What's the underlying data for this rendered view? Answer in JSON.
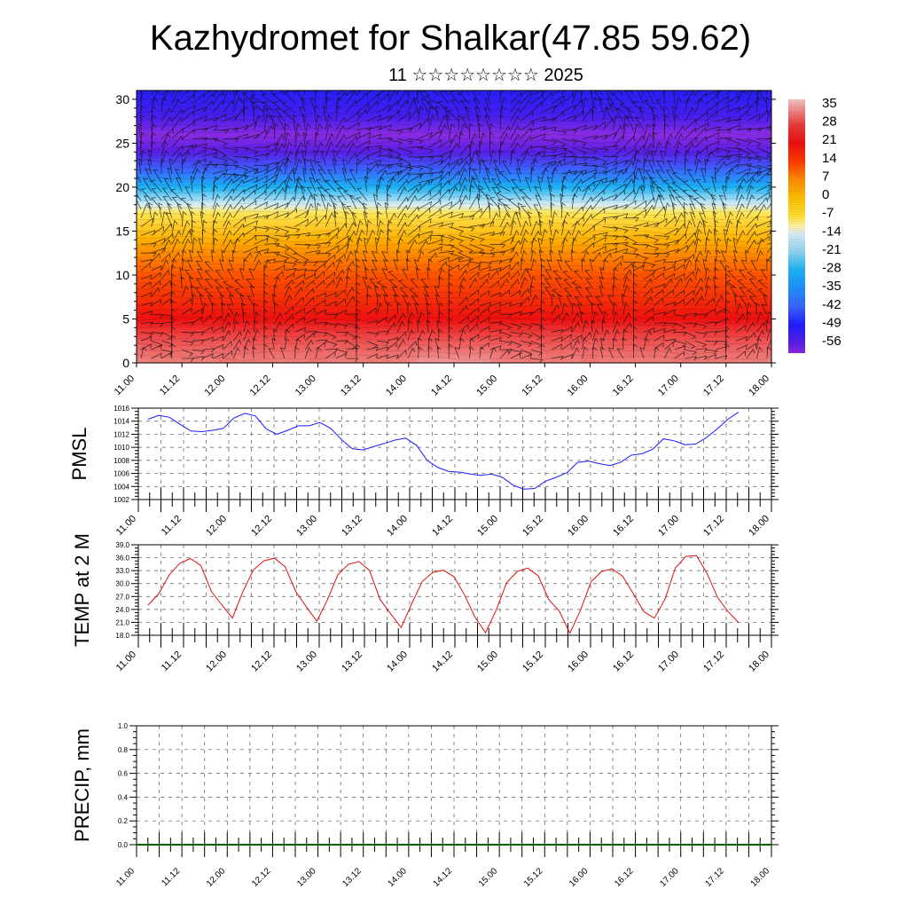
{
  "header": {
    "title": "Kazhydromet for Shalkar(47.85 59.62)",
    "subtitle": "11 ☆☆☆☆☆☆☆☆ 2025"
  },
  "chart_data": [
    {
      "type": "heatmap",
      "id": "cross-section",
      "description_layers": [
        "temperature-fill",
        "wind-vectors"
      ],
      "x_tick_labels": [
        "11.00",
        "11.12",
        "12.00",
        "12.12",
        "13.00",
        "13.12",
        "14.00",
        "14.12",
        "15.00",
        "15.12",
        "16.00",
        "16.12",
        "17.00",
        "17.12",
        "18.00"
      ],
      "ylim": [
        0,
        31
      ],
      "y_ticks": [
        0,
        5,
        10,
        15,
        20,
        25,
        30
      ],
      "zlim": [
        -60,
        38
      ],
      "colorbar_labels": [
        35,
        28,
        21,
        14,
        7,
        0,
        -7,
        -14,
        -21,
        -28,
        -35,
        -42,
        -49,
        -56
      ],
      "profile": [
        {
          "height": 0,
          "value": 35
        },
        {
          "height": 5,
          "value": 21
        },
        {
          "height": 10,
          "value": 12
        },
        {
          "height": 14,
          "value": 2
        },
        {
          "height": 17,
          "value": -8
        },
        {
          "height": 18,
          "value": -14
        },
        {
          "height": 20,
          "value": -28
        },
        {
          "height": 22,
          "value": -42
        },
        {
          "height": 24,
          "value": -56
        },
        {
          "height": 26,
          "value": -60
        },
        {
          "height": 28,
          "value": -54
        },
        {
          "height": 31,
          "value": -50
        }
      ],
      "warm_blobs_day": [
        11.5,
        12.5,
        13.5,
        15.5,
        16.5,
        17.5
      ]
    },
    {
      "type": "line",
      "id": "pmsl",
      "ylabel": "PMSL",
      "ylim": [
        1002,
        1016
      ],
      "y_ticks": [
        1002,
        1004,
        1006,
        1008,
        1010,
        1012,
        1014,
        1016
      ],
      "x_tick_labels": [
        "11.00",
        "11.12",
        "12.00",
        "12.12",
        "13.00",
        "13.12",
        "14.00",
        "14.12",
        "15.00",
        "15.12",
        "16.00",
        "16.12",
        "17.00",
        "17.12",
        "18.00"
      ],
      "series": [
        {
          "color": "#1a1aff",
          "values": [
            1014.3,
            1014.9,
            1014.6,
            1013.5,
            1012.5,
            1012.4,
            1012.6,
            1012.9,
            1014.5,
            1015.2,
            1014.8,
            1012.8,
            1012.0,
            1012.6,
            1013.3,
            1013.3,
            1013.8,
            1012.9,
            1011.2,
            1009.8,
            1009.6,
            1010.1,
            1010.6,
            1011.1,
            1011.4,
            1010.3,
            1008.0,
            1006.9,
            1006.3,
            1006.2,
            1005.9,
            1005.7,
            1005.9,
            1005.4,
            1004.2,
            1003.6,
            1003.7,
            1004.8,
            1005.4,
            1006.1,
            1007.7,
            1007.9,
            1007.5,
            1007.2,
            1007.7,
            1008.8,
            1009.0,
            1009.7,
            1011.3,
            1011.0,
            1010.4,
            1010.5,
            1011.5,
            1012.8,
            1014.3,
            1015.4
          ]
        }
      ]
    },
    {
      "type": "line",
      "id": "temp2m",
      "ylabel": "TEMP at 2 M",
      "ylim": [
        18,
        39
      ],
      "y_ticks": [
        "18.0",
        "21.0",
        "24.0",
        "27.0",
        "30.0",
        "33.0",
        "36.0",
        "39.0"
      ],
      "x_tick_labels": [
        "11.00",
        "11.12",
        "12.00",
        "12.12",
        "13.00",
        "13.12",
        "14.00",
        "14.12",
        "15.00",
        "15.12",
        "16.00",
        "16.12",
        "17.00",
        "17.12",
        "18.00"
      ],
      "series": [
        {
          "color": "#e01010",
          "values": [
            25.0,
            27.6,
            32.0,
            34.7,
            35.8,
            34.2,
            28.2,
            25.0,
            22.0,
            28.2,
            33.2,
            35.3,
            35.9,
            33.9,
            28.2,
            24.6,
            21.3,
            26.2,
            32.1,
            34.5,
            35.1,
            33.0,
            26.3,
            23.0,
            19.8,
            25.3,
            30.5,
            32.6,
            33.1,
            31.6,
            27.4,
            22.2,
            18.6,
            23.8,
            30.2,
            32.8,
            33.6,
            31.8,
            26.3,
            23.6,
            18.5,
            23.8,
            30.4,
            32.8,
            33.4,
            31.7,
            27.7,
            23.5,
            22.0,
            26.3,
            33.6,
            36.3,
            36.5,
            32.4,
            26.8,
            23.5,
            20.9
          ]
        }
      ]
    },
    {
      "type": "line",
      "id": "precip",
      "ylabel": "PRECIP, mm",
      "ylim": [
        0,
        1
      ],
      "y_ticks": [
        "0.0",
        "0.2",
        "0.4",
        "0.6",
        "0.8",
        "1.0"
      ],
      "x_tick_labels": [
        "11.00",
        "11.12",
        "12.00",
        "12.12",
        "13.00",
        "13.12",
        "14.00",
        "14.12",
        "15.00",
        "15.12",
        "16.00",
        "16.12",
        "17.00",
        "17.12",
        "18.00"
      ],
      "series": [
        {
          "color": "#006600",
          "values": [
            0,
            0
          ]
        }
      ]
    }
  ]
}
